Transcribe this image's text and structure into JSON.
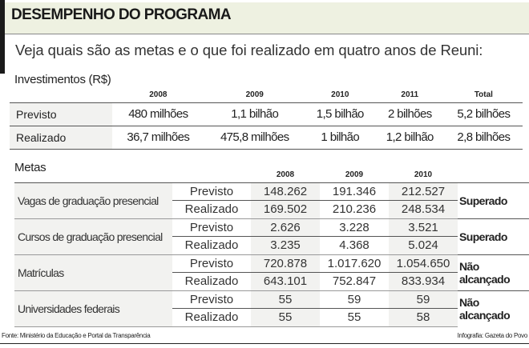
{
  "header": {
    "title": "DESEMPENHO DO PROGRAMA",
    "subtitle": "Veja quais são as metas e o que foi realizado em quatro anos de Reuni:"
  },
  "investimentos": {
    "title": "Investimentos (R$)",
    "columns": [
      "2008",
      "2009",
      "2010",
      "2011",
      "Total"
    ],
    "rows": [
      {
        "label": "Previsto",
        "values": [
          "480 milhões",
          "1,1 bilhão",
          "1,5 bilhão",
          "2 bilhões",
          "5,2 bilhões"
        ]
      },
      {
        "label": "Realizado",
        "values": [
          "36,7 milhões",
          "475,8 milhões",
          "1 bilhão",
          "1,2 bilhão",
          "2,8 bilhões"
        ]
      }
    ]
  },
  "metas": {
    "title": "Metas",
    "columns": [
      "2008",
      "2009",
      "2010"
    ],
    "groups": [
      {
        "label": "Vagas de graduação presencial",
        "status": "Superado",
        "previsto_label": "Previsto",
        "realizado_label": "Realizado",
        "previsto": [
          "148.262",
          "191.346",
          "212.527"
        ],
        "realizado": [
          "169.502",
          "210.236",
          "248.534"
        ]
      },
      {
        "label": "Cursos de graduação presencial",
        "status": "Superado",
        "previsto_label": "Previsto",
        "realizado_label": "Realizado",
        "previsto": [
          "2.626",
          "3.228",
          "3.521"
        ],
        "realizado": [
          "3.235",
          "4.368",
          "5.024"
        ]
      },
      {
        "label": "Matrículas",
        "status": "Não alcançado",
        "previsto_label": "Previsto",
        "realizado_label": "Realizado",
        "previsto": [
          "720.878",
          "1.017.620",
          "1.054.650"
        ],
        "realizado": [
          "643.101",
          "752.847",
          "833.934"
        ]
      },
      {
        "label": "Universidades federais",
        "status": "Não alcançado",
        "previsto_label": "Previsto",
        "realizado_label": "Realizado",
        "previsto": [
          "55",
          "59",
          "59"
        ],
        "realizado": [
          "55",
          "55",
          "58"
        ]
      }
    ]
  },
  "footer": {
    "source": "Fonte: Ministério da Educação e Portal da Transparência",
    "credit": "Infografia: Gazeta do Povo"
  }
}
